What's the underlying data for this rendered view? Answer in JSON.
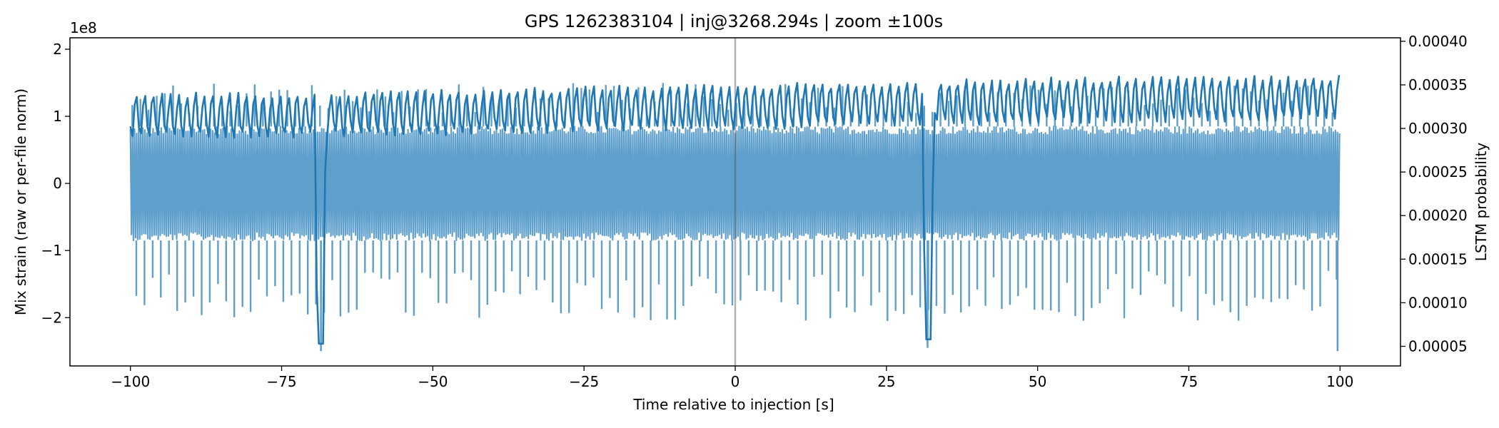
{
  "chart_data": {
    "type": "line",
    "title": "GPS 1262383104 | inj@3268.294s | zoom ±100s",
    "xlabel": "Time relative to injection [s]",
    "ylabel_left": "Mix strain (raw or per-file norm)",
    "ylabel_right": "LSTM probability",
    "left_offset_label": "1e8",
    "xlim": [
      -110,
      110
    ],
    "ylim_left": [
      -2.72,
      2.17
    ],
    "ylim_right": [
      2.75e-05,
      0.000404
    ],
    "xticks": [
      -100,
      -75,
      -50,
      -25,
      0,
      25,
      50,
      75,
      100
    ],
    "xtick_labels": [
      "−100",
      "−75",
      "−50",
      "−25",
      "0",
      "25",
      "50",
      "75",
      "100"
    ],
    "yticks_left": [
      -2,
      -1,
      0,
      1,
      2
    ],
    "ytick_labels_left": [
      "−2",
      "−1",
      "0",
      "1",
      "2"
    ],
    "yticks_right": [
      5e-05,
      0.0001,
      0.00015,
      0.0002,
      0.00025,
      0.0003,
      0.00035,
      0.0004
    ],
    "ytick_labels_right": [
      "0.00005",
      "0.00010",
      "0.00015",
      "0.00020",
      "0.00025",
      "0.00030",
      "0.00035",
      "0.00040"
    ],
    "injection_time": 0,
    "series": [
      {
        "name": "Mix strain",
        "axis": "left",
        "color": "#5f9fcc",
        "x_range": [
          -100,
          100
        ],
        "dense_band": [
          -0.85,
          0.85
        ],
        "peak_period_s": 1.35,
        "upper_peaks": [
          1.5,
          1.05
        ],
        "lower_peaks": [
          -1.3,
          -2.05
        ],
        "deep_glitches": [
          {
            "x": -68.5,
            "y": -2.5
          },
          {
            "x": 31.8,
            "y": -2.45
          },
          {
            "x": 99.6,
            "y": -2.5
          }
        ]
      },
      {
        "name": "LSTM probability",
        "axis": "right",
        "color": "#1f77b4",
        "x": [
          -100,
          -75,
          -50,
          -25,
          0,
          25,
          50,
          75,
          100
        ],
        "baseline": [
          0.000315,
          0.000315,
          0.000318,
          0.000322,
          0.000325,
          0.000328,
          0.000332,
          0.000334,
          0.000335
        ],
        "oscillation_amplitude": 2.5e-05,
        "dips": [
          {
            "x": -68.6,
            "y": 5.3e-05
          },
          {
            "x": 31.9,
            "y": 5.8e-05
          }
        ]
      }
    ]
  }
}
